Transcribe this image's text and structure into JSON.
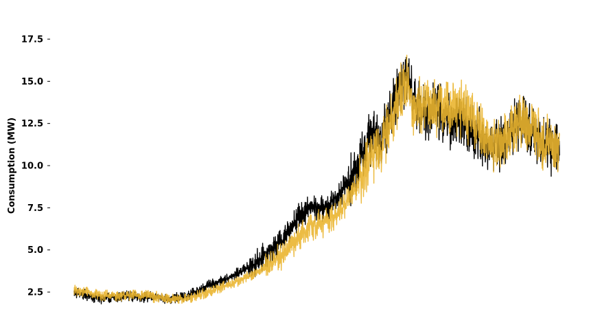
{
  "chart_data": {
    "type": "line",
    "title": "",
    "xlabel": "",
    "ylabel": "Consumption (MW)",
    "ylim": [
      1.4,
      18.6
    ],
    "xlim": [
      0,
      700
    ],
    "grid": false,
    "legend": "none",
    "y_ticks": [
      2.5,
      5.0,
      7.5,
      10.0,
      12.5,
      15.0,
      17.5
    ],
    "y_tick_labels": [
      "2.5",
      "5.0",
      "7.5",
      "10.0",
      "12.5",
      "15.0",
      "17.5"
    ],
    "series": [
      {
        "color": "#000000",
        "x": [
          0,
          20,
          40,
          60,
          80,
          100,
          120,
          140,
          160,
          180,
          200,
          220,
          240,
          260,
          280,
          300,
          320,
          340,
          360,
          380,
          400,
          420,
          430,
          440,
          450,
          460,
          470,
          480,
          490,
          500,
          520,
          540,
          560,
          580,
          600,
          620,
          640,
          660,
          680,
          700
        ],
        "values": [
          2.5,
          2.3,
          2.1,
          2.2,
          2.3,
          2.2,
          2.2,
          2.1,
          2.2,
          2.6,
          3.0,
          3.3,
          3.7,
          4.2,
          4.8,
          5.6,
          6.8,
          7.6,
          7.4,
          8.2,
          9.3,
          11.0,
          11.8,
          11.5,
          12.4,
          13.5,
          14.8,
          15.4,
          14.0,
          13.3,
          13.2,
          12.8,
          12.6,
          11.8,
          11.2,
          11.4,
          12.5,
          12.1,
          11.3,
          11.2
        ]
      },
      {
        "color": "#ffc93c",
        "x": [
          0,
          20,
          40,
          60,
          80,
          100,
          120,
          140,
          160,
          180,
          200,
          220,
          240,
          260,
          280,
          300,
          320,
          340,
          360,
          380,
          400,
          420,
          430,
          440,
          450,
          460,
          470,
          480,
          490,
          500,
          520,
          540,
          560,
          580,
          600,
          620,
          640,
          660,
          680,
          700
        ],
        "values": [
          2.6,
          2.5,
          2.3,
          2.3,
          2.3,
          2.3,
          2.2,
          2.1,
          2.1,
          2.3,
          2.6,
          2.9,
          3.2,
          3.6,
          4.1,
          4.7,
          5.6,
          6.4,
          6.6,
          7.1,
          8.3,
          9.6,
          10.6,
          10.8,
          11.8,
          13.0,
          14.5,
          15.0,
          13.5,
          13.6,
          13.5,
          13.6,
          13.4,
          12.4,
          11.4,
          11.6,
          12.5,
          12.4,
          11.3,
          11.0
        ]
      }
    ]
  }
}
